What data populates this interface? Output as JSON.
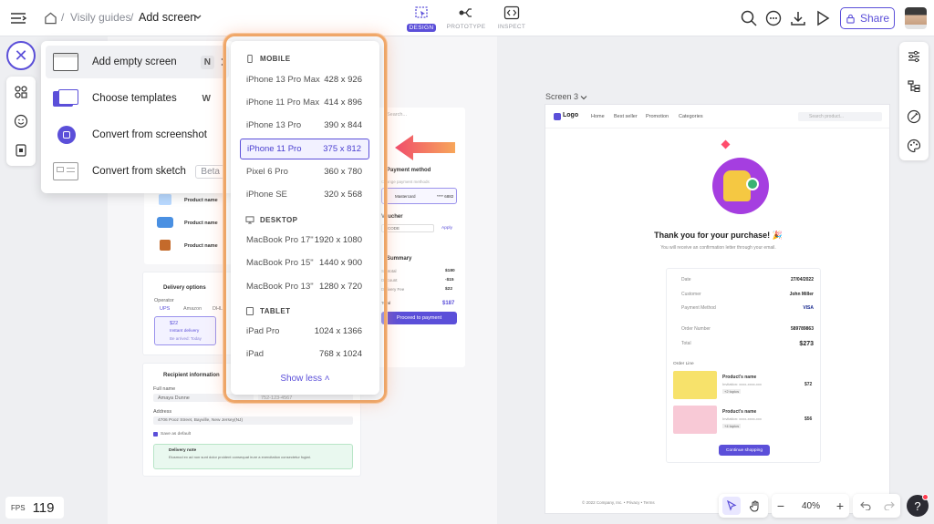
{
  "topbar": {
    "breadcrumb_parent": "Visily guides",
    "breadcrumb_current": "Add screen",
    "modes": [
      {
        "label": "DESIGN",
        "active": true
      },
      {
        "label": "PROTOTYPE",
        "active": false
      },
      {
        "label": "INSPECT",
        "active": false
      }
    ],
    "share_label": "Share"
  },
  "add_menu": {
    "items": [
      {
        "label": "Add empty screen",
        "shortcut": "N"
      },
      {
        "label": "Choose templates",
        "shortcut": "W"
      },
      {
        "label": "Convert from screenshot"
      },
      {
        "label": "Convert from sketch",
        "badge": "Beta"
      }
    ]
  },
  "device_menu": {
    "mobile": {
      "title": "MOBILE",
      "devices": [
        {
          "name": "iPhone 13 Pro Max",
          "size": "428 x 926"
        },
        {
          "name": "iPhone 11 Pro Max",
          "size": "414 x 896"
        },
        {
          "name": "iPhone 13 Pro",
          "size": "390 x 844"
        },
        {
          "name": "iPhone 11 Pro",
          "size": "375 x 812"
        },
        {
          "name": "Pixel 6 Pro",
          "size": "360 x 780"
        },
        {
          "name": "iPhone SE",
          "size": "320 x 568"
        }
      ]
    },
    "desktop": {
      "title": "DESKTOP",
      "devices": [
        {
          "name": "MacBook Pro 17\"",
          "size": "1920 x 1080"
        },
        {
          "name": "MacBook Pro 15\"",
          "size": "1440 x 900"
        },
        {
          "name": "MacBook Pro 13\"",
          "size": "1280 x 720"
        }
      ]
    },
    "tablet": {
      "title": "TABLET",
      "devices": [
        {
          "name": "iPad Pro",
          "size": "1024 x 1366"
        },
        {
          "name": "iPad",
          "size": "768 x 1024"
        }
      ]
    },
    "show_less": "Show less",
    "selected": "iPhone 11 Pro"
  },
  "canvas_left": {
    "product_name": "Product name",
    "delivery_title": "Delivery options",
    "operator_label": "Operator",
    "operators": [
      "UPS",
      "Amazon",
      "DHL"
    ],
    "delivery_price": "$22",
    "delivery_type": "Instant delivery",
    "delivery_when": "Be arrived: Today",
    "recipient_title": "Recipient information",
    "full_name_label": "Full name",
    "full_name_value": "Amaya Dunne",
    "phone_value": "752-123-4567",
    "address_label": "Address",
    "address_value": "4706 Pooz Street, Bayville, New Jersey(NJ)",
    "save_default": "Save as default",
    "delivery_note_title": "Delivery note",
    "delivery_note_text": "Eiusmod ex ad non sunt dolor proident consequat irure a exercitation consectetur fugiat.",
    "search_placeholder": "Search...",
    "payment_title": "Payment method",
    "payment_sub": "Change payment methods",
    "card_name": "Mastercard",
    "card_digits": "**** 6882",
    "voucher_title": "Voucher",
    "voucher_code": "CODE",
    "apply": "Apply",
    "summary_title": "Summary",
    "summary_rows": [
      {
        "k": "Subtotal",
        "v": "$180"
      },
      {
        "k": "Discount",
        "v": "-$15"
      },
      {
        "k": "Delivery Fee",
        "v": "$22"
      }
    ],
    "total_label": "Total",
    "total_value": "$187",
    "proceed": "Proceed to payment"
  },
  "screen3": {
    "label": "Screen 3",
    "logo": "Logo",
    "nav": [
      "Home",
      "Best seller",
      "Promotion",
      "Categories"
    ],
    "search_placeholder": "Search product...",
    "thanks": "Thank you for your purchase! 🎉",
    "subtitle": "You will receive an confirmation letter through your email.",
    "rows": [
      {
        "k": "Date",
        "v": "27/04/2022"
      },
      {
        "k": "Customer",
        "v": "John Miller"
      },
      {
        "k": "Payment Method",
        "v": "VISA"
      },
      {
        "k": "Order Number",
        "v": "589789863"
      },
      {
        "k": "Total",
        "v": "$273"
      }
    ],
    "order_line": "Order Line",
    "items": [
      {
        "name": "Product's name",
        "desc": "Invitation: xxxx-xxxx-xxx",
        "badge": "+2 topics",
        "price": "$72"
      },
      {
        "name": "Product's name",
        "desc": "Invitation: xxxx-xxxx-xxx",
        "badge": "+4 topics",
        "price": "$56"
      }
    ],
    "continue": "Continue shopping",
    "footer": "© 2022 Company, Inc. • Privacy • Terms"
  },
  "bottom": {
    "fps_label": "FPS",
    "fps_value": "119",
    "zoom": "40%"
  },
  "colors": {
    "accent": "#5b4fd9",
    "arrow_start": "#f04d6b",
    "arrow_end": "#f7a65a",
    "glow": "#f1a86a"
  }
}
